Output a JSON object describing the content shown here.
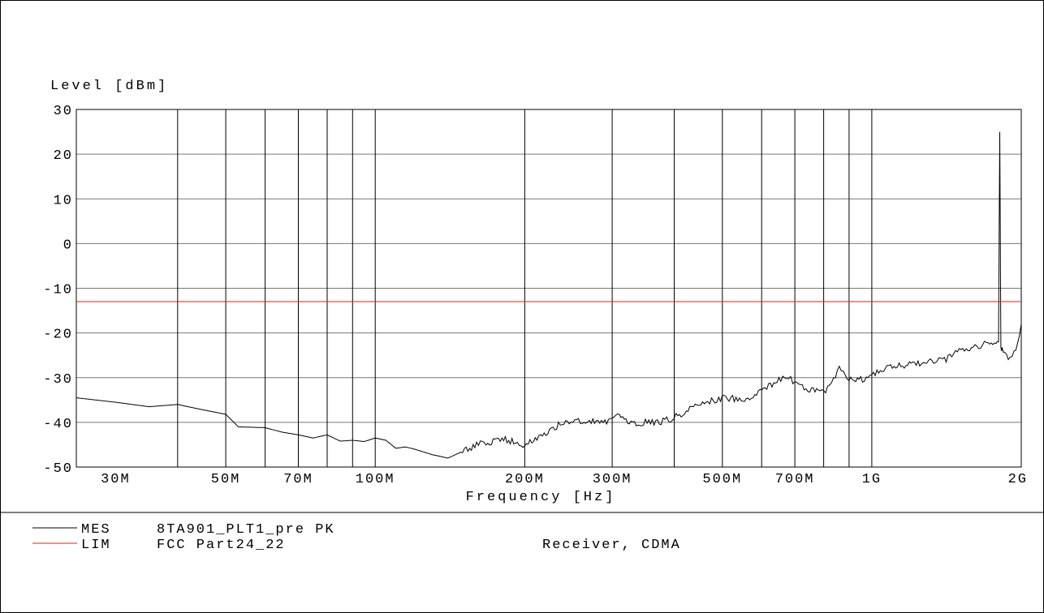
{
  "chart_data": {
    "type": "line",
    "ylabel": "Level  [dBm]",
    "xlabel": "Frequency  [Hz]",
    "xscale": "log",
    "xlim": [
      25000000,
      2000000000
    ],
    "ylim": [
      -50,
      30
    ],
    "y_ticks": [
      {
        "value": 30,
        "label": "30"
      },
      {
        "value": 20,
        "label": "20"
      },
      {
        "value": 10,
        "label": "10"
      },
      {
        "value": 0,
        "label": "0"
      },
      {
        "value": -10,
        "label": "-10"
      },
      {
        "value": -20,
        "label": "-20"
      },
      {
        "value": -30,
        "label": "-30"
      },
      {
        "value": -40,
        "label": "-40"
      },
      {
        "value": -50,
        "label": "-50"
      }
    ],
    "x_gridlines": [
      40000000,
      50000000,
      60000000,
      70000000,
      80000000,
      90000000,
      100000000,
      200000000,
      300000000,
      400000000,
      500000000,
      600000000,
      700000000,
      800000000,
      900000000,
      1000000000
    ],
    "x_ticks": [
      {
        "value": 30000000,
        "label": "30M"
      },
      {
        "value": 50000000,
        "label": "50M"
      },
      {
        "value": 70000000,
        "label": "70M"
      },
      {
        "value": 100000000,
        "label": "100M"
      },
      {
        "value": 200000000,
        "label": "200M"
      },
      {
        "value": 300000000,
        "label": "300M"
      },
      {
        "value": 500000000,
        "label": "500M"
      },
      {
        "value": 700000000,
        "label": "700M"
      },
      {
        "value": 1000000000,
        "label": "1G"
      },
      {
        "value": 2000000000,
        "label": "2G"
      }
    ],
    "series": [
      {
        "name": "MES",
        "color": "#000000",
        "x": [
          25000000,
          30000000,
          35000000,
          40000000,
          45000000,
          50000000,
          53000000,
          60000000,
          65000000,
          70000000,
          75000000,
          80000000,
          85000000,
          90000000,
          95000000,
          100000000,
          105000000,
          110000000,
          115000000,
          120000000,
          130000000,
          140000000,
          150000000,
          160000000,
          170000000,
          180000000,
          190000000,
          200000000,
          210000000,
          230000000,
          250000000,
          270000000,
          290000000,
          310000000,
          330000000,
          350000000,
          370000000,
          400000000,
          430000000,
          460000000,
          500000000,
          550000000,
          600000000,
          650000000,
          680000000,
          700000000,
          750000000,
          800000000,
          830000000,
          860000000,
          900000000,
          950000000,
          1000000000,
          1100000000,
          1200000000,
          1300000000,
          1400000000,
          1500000000,
          1600000000,
          1700000000,
          1780000000,
          1800000000,
          1810000000,
          1820000000,
          1830000000,
          1850000000,
          1900000000,
          1950000000,
          2000000000
        ],
        "y": [
          -34.5,
          -35.5,
          -36.5,
          -36.0,
          -37.2,
          -38.2,
          -41.0,
          -41.2,
          -42.2,
          -42.8,
          -43.5,
          -42.8,
          -44.2,
          -44.0,
          -44.3,
          -43.5,
          -44.0,
          -45.8,
          -45.5,
          -46.0,
          -47.2,
          -48.0,
          -46.5,
          -45.0,
          -44.5,
          -43.8,
          -44.2,
          -45.0,
          -43.5,
          -41.0,
          -39.5,
          -39.5,
          -39.8,
          -38.5,
          -40.5,
          -40.0,
          -40.0,
          -39.0,
          -36.8,
          -35.5,
          -34.5,
          -34.8,
          -33.2,
          -30.5,
          -30.0,
          -31.5,
          -32.5,
          -33.5,
          -31.0,
          -28.0,
          -30.0,
          -30.5,
          -29.0,
          -27.5,
          -27.0,
          -26.5,
          -26.0,
          -24.0,
          -23.5,
          -22.5,
          -23.0,
          -22.0,
          25.0,
          -23.0,
          -23.5,
          -24.5,
          -25.5,
          -24.5,
          -18.0
        ]
      },
      {
        "name": "LIM",
        "color": "#e0201c",
        "x": [
          25000000,
          2000000000
        ],
        "y": [
          -13,
          -13
        ]
      }
    ],
    "legend_position": "bottom-left",
    "legend": [
      {
        "code": "MES",
        "name": "8TA901_PLT1_pre PK",
        "extra": ""
      },
      {
        "code": "LIM",
        "name": "FCC Part24_22",
        "extra": "Receiver, CDMA"
      }
    ]
  }
}
